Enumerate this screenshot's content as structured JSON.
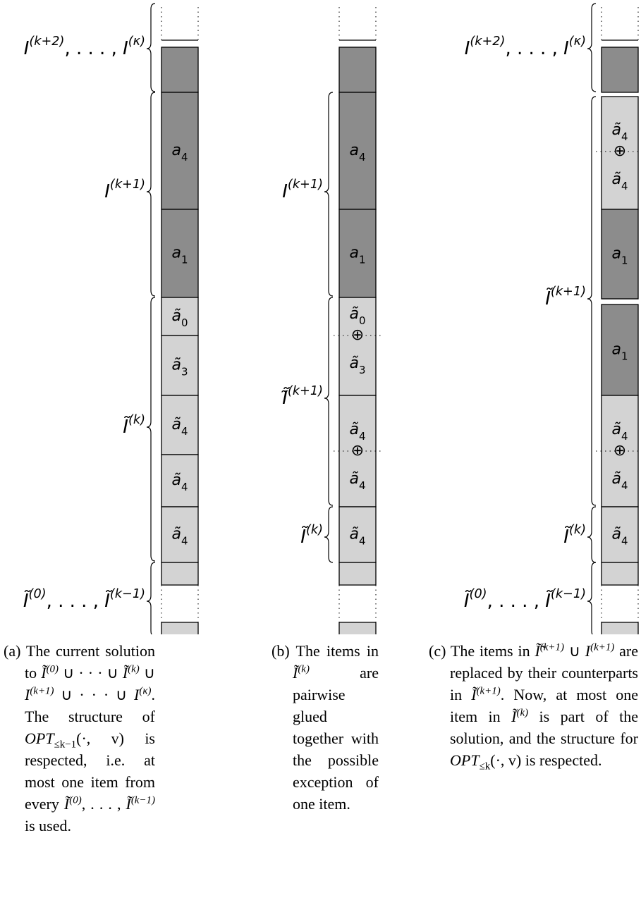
{
  "columns": [
    {
      "brackets": [
        {
          "label": [
            {
              "base": "I",
              "sup": "(k+2)"
            },
            ", . . . , ",
            {
              "base": "I",
              "sup": "(κ)"
            }
          ]
        },
        {
          "label": [
            {
              "base": "I",
              "sup": "(k+1)"
            }
          ]
        },
        {
          "label": [
            {
              "base": "Ĩ",
              "sup": "(k)"
            }
          ]
        },
        {
          "label": [
            {
              "base": "Ĩ",
              "sup": "(0)"
            },
            ", . . . , ",
            {
              "base": "Ĩ",
              "sup": "(k−1)"
            }
          ]
        }
      ],
      "blocks": [
        {
          "shade": "dark"
        },
        {
          "shade": "dark",
          "label": {
            "base": "a",
            "sub": "4"
          }
        },
        {
          "shade": "dark",
          "label": {
            "base": "a",
            "sub": "1"
          }
        },
        {
          "shade": "light",
          "label": {
            "base": "ã",
            "sub": "0"
          }
        },
        {
          "shade": "light",
          "label": {
            "base": "ã",
            "sub": "3"
          }
        },
        {
          "shade": "light",
          "label": {
            "base": "ã",
            "sub": "4"
          }
        },
        {
          "shade": "light",
          "label": {
            "base": "ã",
            "sub": "4"
          }
        },
        {
          "shade": "light",
          "label": {
            "base": "ã",
            "sub": "4"
          }
        },
        {
          "shade": "light"
        },
        {
          "shade": "light"
        }
      ],
      "caption": {
        "tag": "(a)",
        "parts": [
          "The current solution to ",
          {
            "base": "Ĩ",
            "sup": "(0)"
          },
          " ∪ · · · ∪ ",
          {
            "base": "Ĩ",
            "sup": "(k)"
          },
          " ∪ ",
          {
            "base": "I",
            "sup": "(k+1)"
          },
          " ∪ · · · ∪ ",
          {
            "base": "I",
            "sup": "(κ)"
          },
          ". The structure of ",
          {
            "base": "OPT",
            "sub": "≤k−1"
          },
          "(·, v) is respected, i.e. at most one item from every ",
          {
            "base": "Ĩ",
            "sup": "(0)"
          },
          ", . . . , ",
          {
            "base": "Ĩ",
            "sup": "(k−1)"
          },
          " is used."
        ]
      }
    },
    {
      "brackets": [
        {
          "label": [
            {
              "base": "I",
              "sup": "(k+1)"
            }
          ]
        },
        {
          "label": [
            {
              "base": "Ĩ̃",
              "sup": "(k+1)"
            }
          ]
        },
        {
          "label": [
            {
              "base": "Ĩ",
              "sup": "(k)"
            }
          ]
        }
      ],
      "blocks": [
        {
          "shade": "dark"
        },
        {
          "shade": "dark",
          "label": {
            "base": "a",
            "sub": "4"
          }
        },
        {
          "shade": "dark",
          "label": {
            "base": "a",
            "sub": "1"
          }
        },
        {
          "shade": "light",
          "top": {
            "base": "ã",
            "sub": "0"
          },
          "op": "⊕",
          "bottom": {
            "base": "ã",
            "sub": "3"
          }
        },
        {
          "shade": "light",
          "top": {
            "base": "ã",
            "sub": "4"
          },
          "op": "⊕",
          "bottom": {
            "base": "ã",
            "sub": "4"
          }
        },
        {
          "shade": "light",
          "label": {
            "base": "ã",
            "sub": "4"
          }
        },
        {
          "shade": "light"
        },
        {
          "shade": "light"
        }
      ],
      "caption": {
        "tag": "(b)",
        "parts": [
          "The items in ",
          {
            "base": "Ĩ",
            "sup": "(k)"
          },
          " are pairwise glued together with the possible exception of one item."
        ]
      }
    },
    {
      "brackets": [
        {
          "label": [
            {
              "base": "I",
              "sup": "(k+2)"
            },
            ", . . . , ",
            {
              "base": "I",
              "sup": "(κ)"
            }
          ]
        },
        {
          "label": [
            {
              "base": "Ĩ",
              "sup": "(k+1)"
            }
          ]
        },
        {
          "label": [
            {
              "base": "Ĩ",
              "sup": "(k)"
            }
          ]
        },
        {
          "label": [
            {
              "base": "Ĩ",
              "sup": "(0)"
            },
            ", . . . , ",
            {
              "base": "Ĩ",
              "sup": "(k−1)"
            }
          ]
        }
      ],
      "blocks": [
        {
          "shade": "dark"
        },
        {
          "shade": "light",
          "top": {
            "base": "ã",
            "sub": "4"
          },
          "op": "⊕",
          "bottom": {
            "base": "ã",
            "sub": "4"
          }
        },
        {
          "shade": "dark",
          "label": {
            "base": "a",
            "sub": "1"
          }
        },
        {
          "shade": "dark",
          "label": {
            "base": "a",
            "sub": "1"
          }
        },
        {
          "shade": "light",
          "top": {
            "base": "ã",
            "sub": "4"
          },
          "op": "⊕",
          "bottom": {
            "base": "ã",
            "sub": "4"
          }
        },
        {
          "shade": "light",
          "label": {
            "base": "ã",
            "sub": "4"
          }
        },
        {
          "shade": "light"
        },
        {
          "shade": "light"
        }
      ],
      "caption": {
        "tag": "(c)",
        "parts": [
          "The items in ",
          {
            "base": "Ĩ̃",
            "sup": "(k+1)"
          },
          " ∪ ",
          {
            "base": "I",
            "sup": "(k+1)"
          },
          " are replaced by their counterparts in ",
          {
            "base": "Ĩ",
            "sup": "(k+1)"
          },
          ". Now, at most one item in ",
          {
            "base": "Ĩ",
            "sup": "(k)"
          },
          " is part of the solution, and the structure for ",
          {
            "base": "OPT",
            "sub": "≤k"
          },
          "(·, v) is respected."
        ]
      }
    }
  ]
}
